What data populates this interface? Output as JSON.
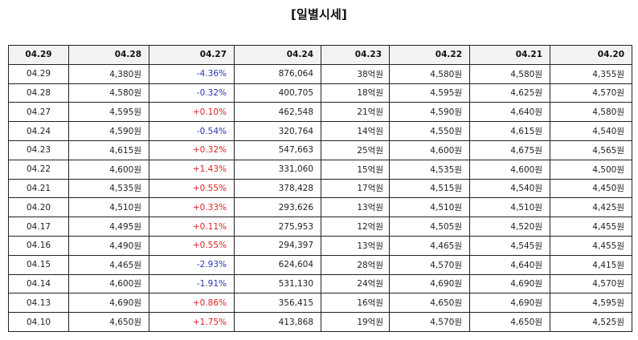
{
  "title": "[일별시세]",
  "header": [
    "04.29",
    "04.28",
    "04.27",
    "04.24",
    "04.23",
    "04.22",
    "04.21",
    "04.20"
  ],
  "rows": [
    [
      "04.29",
      "4,380원",
      "-4.36%",
      "876,064",
      "38억원",
      "4,580원",
      "4,580원",
      "4,355원"
    ],
    [
      "04.28",
      "4,580원",
      "-0.32%",
      "400,705",
      "18억원",
      "4,595원",
      "4,625원",
      "4,570원"
    ],
    [
      "04.27",
      "4,595원",
      "+0.10%",
      "462,548",
      "21억원",
      "4,590원",
      "4,640원",
      "4,580원"
    ],
    [
      "04.24",
      "4,590원",
      "-0.54%",
      "320,764",
      "14억원",
      "4,550원",
      "4,615원",
      "4,540원"
    ],
    [
      "04.23",
      "4,615원",
      "+0.32%",
      "547,663",
      "25억원",
      "4,600원",
      "4,675원",
      "4,565원"
    ],
    [
      "04.22",
      "4,600원",
      "+1.43%",
      "331,060",
      "15억원",
      "4,535원",
      "4,600원",
      "4,500원"
    ],
    [
      "04.21",
      "4,535원",
      "+0.55%",
      "378,428",
      "17억원",
      "4,515원",
      "4,540원",
      "4,450원"
    ],
    [
      "04.20",
      "4,510원",
      "+0.33%",
      "293,626",
      "13억원",
      "4,510원",
      "4,510원",
      "4,425원"
    ],
    [
      "04.17",
      "4,495원",
      "+0.11%",
      "275,953",
      "12억원",
      "4,505원",
      "4,520원",
      "4,455원"
    ],
    [
      "04.16",
      "4,490원",
      "+0.55%",
      "294,397",
      "13억원",
      "4,465원",
      "4,545원",
      "4,455원"
    ],
    [
      "04.15",
      "4,465원",
      "-2.93%",
      "624,604",
      "28억원",
      "4,570원",
      "4,640원",
      "4,415원"
    ],
    [
      "04.14",
      "4,600원",
      "-1.91%",
      "531,130",
      "24억원",
      "4,690원",
      "4,690원",
      "4,570원"
    ],
    [
      "04.13",
      "4,690원",
      "+0.86%",
      "356,415",
      "16억원",
      "4,650원",
      "4,690원",
      "4,595원"
    ],
    [
      "04.10",
      "4,650원",
      "+1.75%",
      "413,868",
      "19억원",
      "4,570원",
      "4,650원",
      "4,525원"
    ]
  ],
  "colors": {
    "up": "#dd2222",
    "down": "#2a35b5"
  }
}
